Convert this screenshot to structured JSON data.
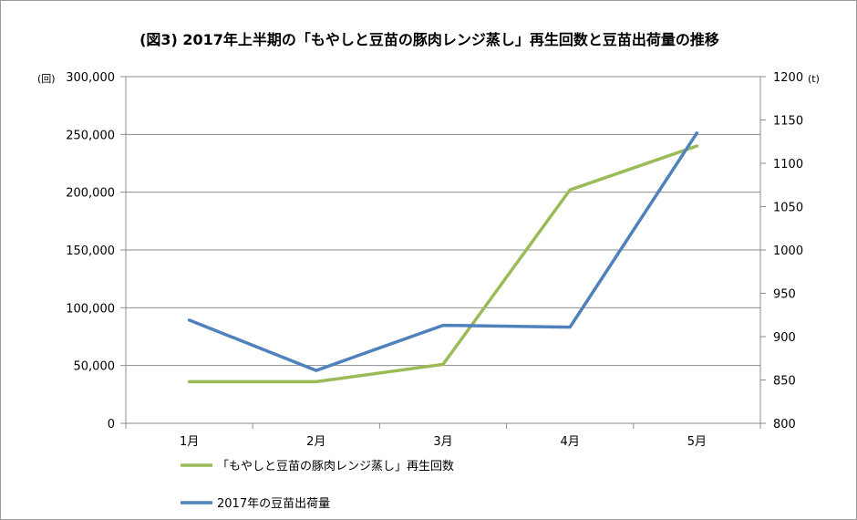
{
  "chart_data": {
    "type": "line",
    "title": "(図3) 2017年上半期の「もやしと豆苗の豚肉レンジ蒸し」再生回数と豆苗出荷量の推移",
    "categories": [
      "1月",
      "2月",
      "3月",
      "4月",
      "5月"
    ],
    "y_left": {
      "unit": "(回)",
      "range": [
        0,
        300000
      ],
      "tick_labels": [
        "0",
        "50,000",
        "100,000",
        "150,000",
        "200,000",
        "250,000",
        "300,000"
      ],
      "tick_values": [
        0,
        50000,
        100000,
        150000,
        200000,
        250000,
        300000
      ]
    },
    "y_right": {
      "unit": "(t)",
      "range": [
        800,
        1200
      ],
      "tick_labels": [
        "800",
        "850",
        "900",
        "950",
        "1000",
        "1050",
        "1100",
        "1150",
        "1200"
      ],
      "tick_values": [
        800,
        850,
        900,
        950,
        1000,
        1050,
        1100,
        1150,
        1200
      ]
    },
    "series": [
      {
        "name": "「もやしと豆苗の豚肉レンジ蒸し」再生回数",
        "axis": "left",
        "color": "#9BBB59",
        "values": [
          36000,
          36000,
          51000,
          202000,
          240000
        ]
      },
      {
        "name": "2017年の豆苗出荷量",
        "axis": "right",
        "color": "#4F81BD",
        "values": [
          919,
          861,
          913,
          911,
          1135
        ]
      }
    ],
    "grid": true,
    "legend_placement": "bottom-left"
  }
}
